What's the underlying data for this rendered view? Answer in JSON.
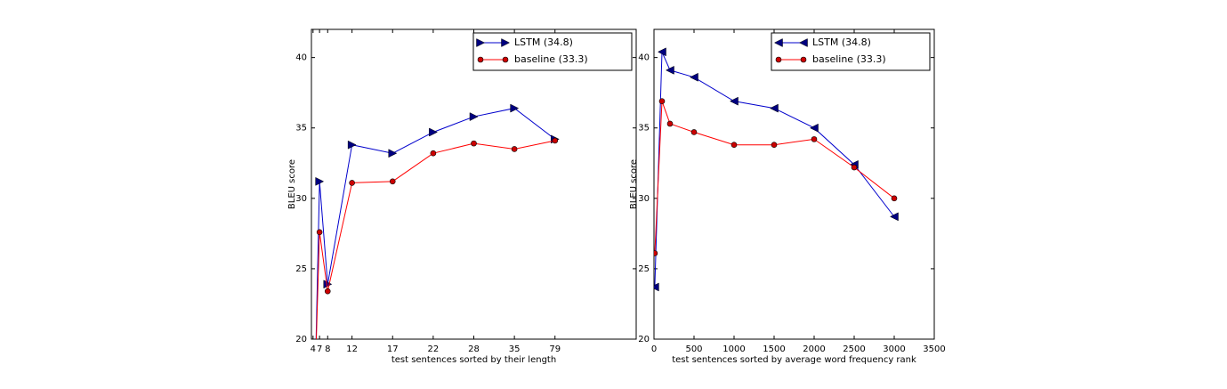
{
  "chart_data": [
    {
      "type": "line",
      "xlabel": "test sentences sorted by their length",
      "ylabel": "BLEU score",
      "x": [
        0.1,
        0.2,
        0.4,
        1,
        2,
        3,
        4,
        5,
        6
      ],
      "xlim": [
        0,
        8
      ],
      "ylim": [
        20,
        42
      ],
      "xticks": [
        {
          "value": 0.04,
          "label": "4"
        },
        {
          "value": 0.2,
          "label": "7"
        },
        {
          "value": 0.4,
          "label": "8"
        },
        {
          "value": 1,
          "label": "12"
        },
        {
          "value": 2,
          "label": "17"
        },
        {
          "value": 3,
          "label": "22"
        },
        {
          "value": 4,
          "label": "28"
        },
        {
          "value": 5,
          "label": "35"
        },
        {
          "value": 6,
          "label": "79"
        }
      ],
      "yticks": [
        20,
        25,
        30,
        35,
        40
      ],
      "legend": "upper right",
      "series": [
        {
          "name": "LSTM  (34.8)",
          "color": "#0000cc",
          "marker": "triangle-right",
          "values": [
            18,
            31.2,
            23.9,
            33.8,
            33.2,
            34.7,
            35.8,
            36.4,
            34.2
          ]
        },
        {
          "name": "baseline (33.3)",
          "color": "#ff0000",
          "marker": "circle",
          "values": [
            18,
            27.6,
            23.4,
            31.1,
            31.2,
            33.2,
            33.9,
            33.5,
            34.1
          ]
        }
      ]
    },
    {
      "type": "line",
      "xlabel": "test sentences sorted by average word frequency rank",
      "ylabel": "BLEU score",
      "x": [
        10,
        100,
        200,
        500,
        1000,
        1500,
        2000,
        2500,
        3000
      ],
      "xlim": [
        0,
        3500
      ],
      "ylim": [
        20,
        42
      ],
      "xticks": [
        0,
        500,
        1000,
        1500,
        2000,
        2500,
        3000,
        3500
      ],
      "yticks": [
        20,
        25,
        30,
        35,
        40
      ],
      "legend": "upper right",
      "series": [
        {
          "name": "LSTM  (34.8)",
          "color": "#0000cc",
          "marker": "triangle-left",
          "values": [
            23.7,
            40.4,
            39.1,
            38.6,
            36.9,
            36.4,
            35.0,
            32.4,
            28.7
          ]
        },
        {
          "name": "baseline (33.3)",
          "color": "#ff0000",
          "marker": "circle",
          "values": [
            26.1,
            36.9,
            35.3,
            34.7,
            33.8,
            33.8,
            34.2,
            32.2,
            30.0
          ]
        }
      ]
    }
  ]
}
